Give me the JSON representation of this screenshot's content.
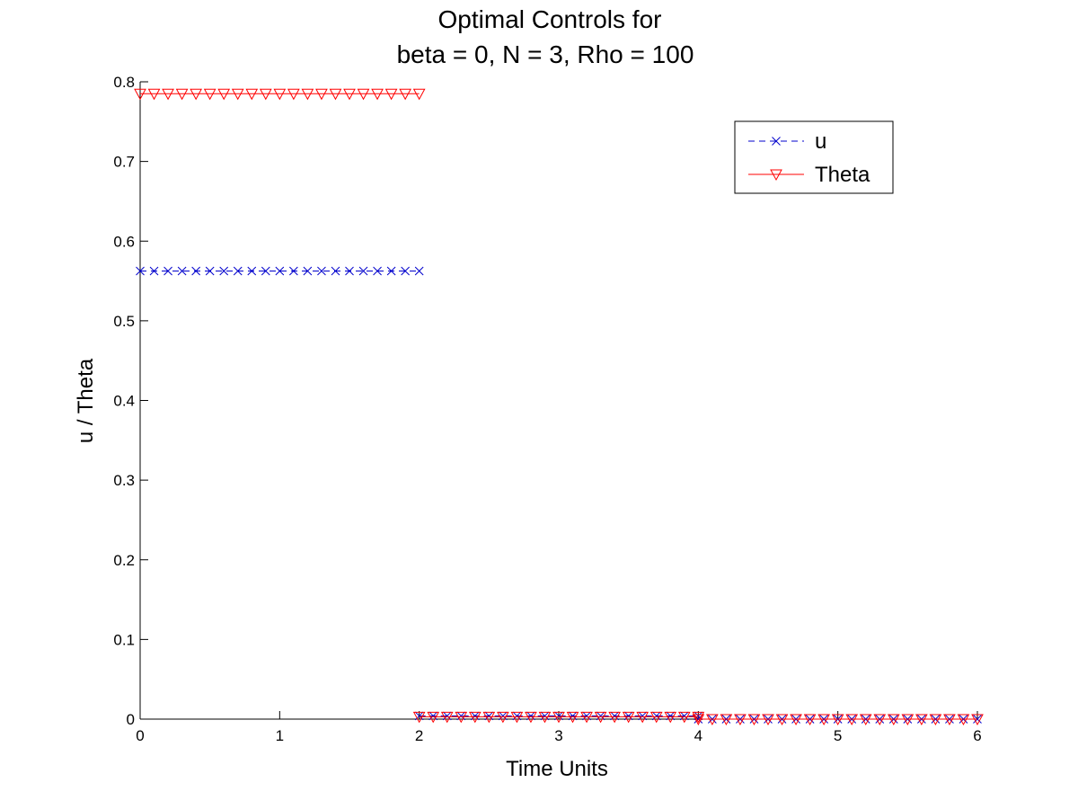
{
  "chart_data": {
    "type": "line",
    "title": [
      "Optimal Controls for",
      "beta = 0, N = 3, Rho = 100"
    ],
    "xlabel": "Time Units",
    "ylabel": "u / Theta",
    "xlim": [
      0,
      6
    ],
    "ylim": [
      0,
      0.8
    ],
    "xticks": [
      0,
      1,
      2,
      3,
      4,
      5,
      6
    ],
    "yticks": [
      0,
      0.1,
      0.2,
      0.3,
      0.4,
      0.5,
      0.6,
      0.7,
      0.8
    ],
    "grid": false,
    "legend_position": "top-right",
    "series": [
      {
        "name": "u",
        "color": "#0000cc",
        "line_style": "dashed",
        "marker": "x",
        "segments": [
          {
            "x_start": 0,
            "x_end": 2,
            "y": 0.5625
          },
          {
            "x_start": 2,
            "x_end": 4,
            "y": 0.004
          },
          {
            "x_start": 4,
            "x_end": 6,
            "y": 0.0
          }
        ]
      },
      {
        "name": "Theta",
        "color": "#ff0000",
        "line_style": "solid",
        "marker": "triangle-down",
        "segments": [
          {
            "x_start": 0,
            "x_end": 2,
            "y": 0.785
          },
          {
            "x_start": 2,
            "x_end": 4,
            "y": 0.003
          },
          {
            "x_start": 4,
            "x_end": 6,
            "y": 0.0
          }
        ]
      }
    ]
  }
}
